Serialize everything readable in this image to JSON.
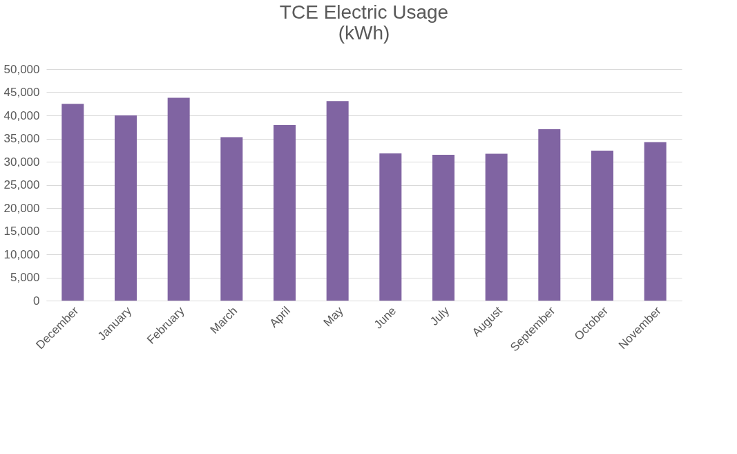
{
  "chart_data": {
    "type": "bar",
    "title": [
      "TCE Electric Usage",
      "(kWh)"
    ],
    "categories": [
      "December",
      "January",
      "February",
      "March",
      "April",
      "May",
      "June",
      "July",
      "August",
      "September",
      "October",
      "November"
    ],
    "values": [
      42500,
      40000,
      43800,
      35300,
      37900,
      43100,
      31800,
      31500,
      31700,
      37000,
      32400,
      34200
    ],
    "color": "#8064a2",
    "ylim": [
      0,
      50000
    ],
    "yticks": [
      0,
      {
        "value": 5000,
        "label": "5,000"
      },
      {
        "value": 10000,
        "label": "10,000"
      },
      {
        "value": 15000,
        "label": "15,000"
      },
      {
        "value": 20000,
        "label": "20,000"
      },
      {
        "value": 25000,
        "label": "25,000"
      },
      {
        "value": 30000,
        "label": "30,000"
      },
      {
        "value": 35000,
        "label": "35,000"
      },
      {
        "value": 40000,
        "label": "40,000"
      },
      {
        "value": 45000,
        "label": "45,000"
      },
      {
        "value": 50000,
        "label": "50,000"
      }
    ],
    "grid": "y"
  }
}
